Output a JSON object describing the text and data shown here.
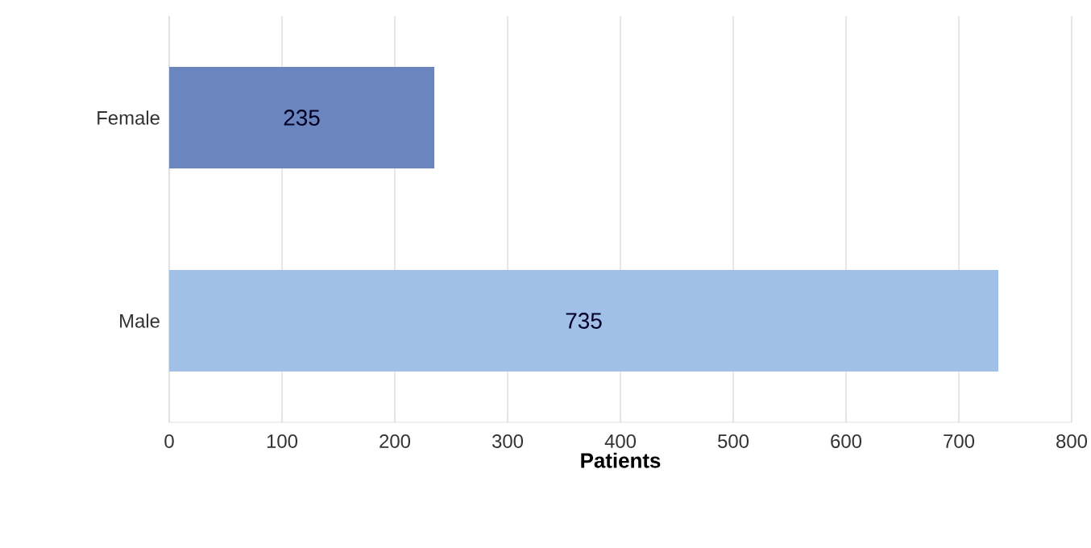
{
  "chart_data": {
    "type": "bar",
    "orientation": "horizontal",
    "categories": [
      "Female",
      "Male"
    ],
    "values": [
      235,
      735
    ],
    "colors": [
      "#6b86be",
      "#a0c0e8"
    ],
    "xlabel": "Patients",
    "xlim": [
      0,
      800
    ],
    "xticks": [
      0,
      100,
      200,
      300,
      400,
      500,
      600,
      700,
      800
    ],
    "grid": "x",
    "data_labels": true
  }
}
